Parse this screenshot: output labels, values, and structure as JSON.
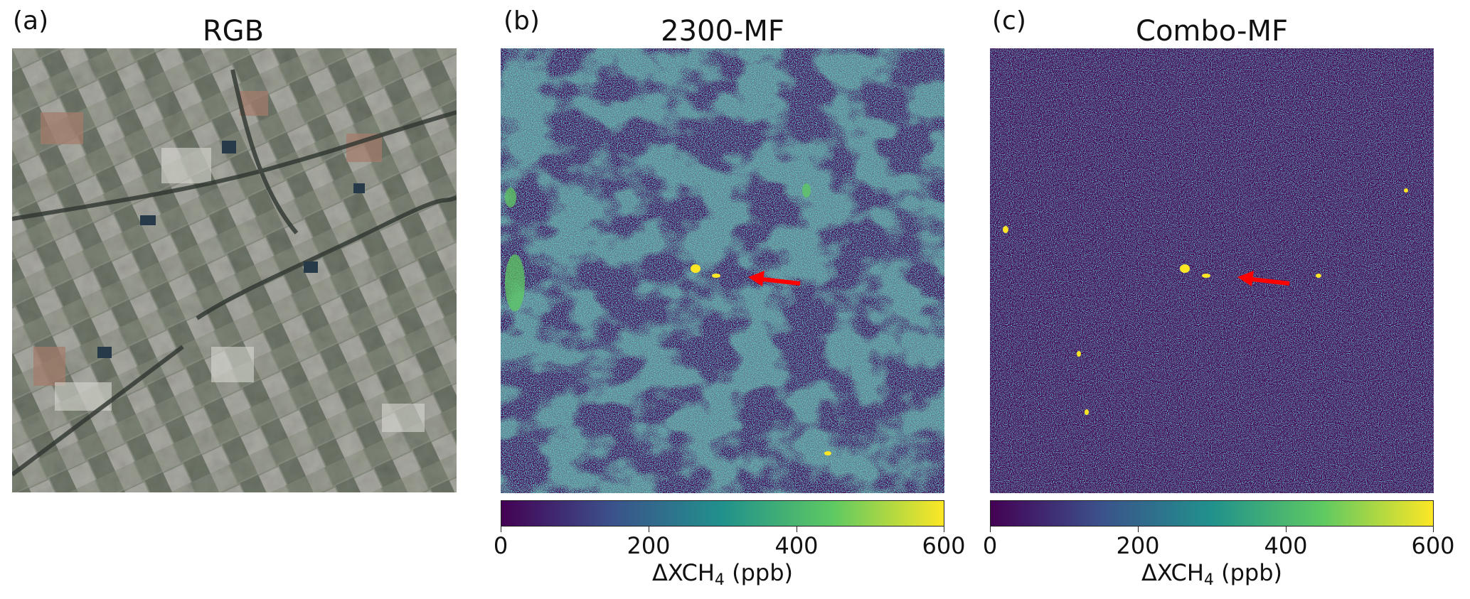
{
  "panels": [
    {
      "letter": "(a)",
      "title": "RGB"
    },
    {
      "letter": "(b)",
      "title": "2300-MF"
    },
    {
      "letter": "(c)",
      "title": "Combo-MF"
    }
  ],
  "colorbar": {
    "ticks": [
      "0",
      "200",
      "400",
      "600"
    ],
    "label_main": "ΔXCH",
    "label_sub": "4",
    "label_unit": " (ppb)",
    "colors": [
      "#440154",
      "#3b528b",
      "#21918c",
      "#5ec962",
      "#fde725"
    ]
  },
  "arrow_color": "#ff0000"
}
